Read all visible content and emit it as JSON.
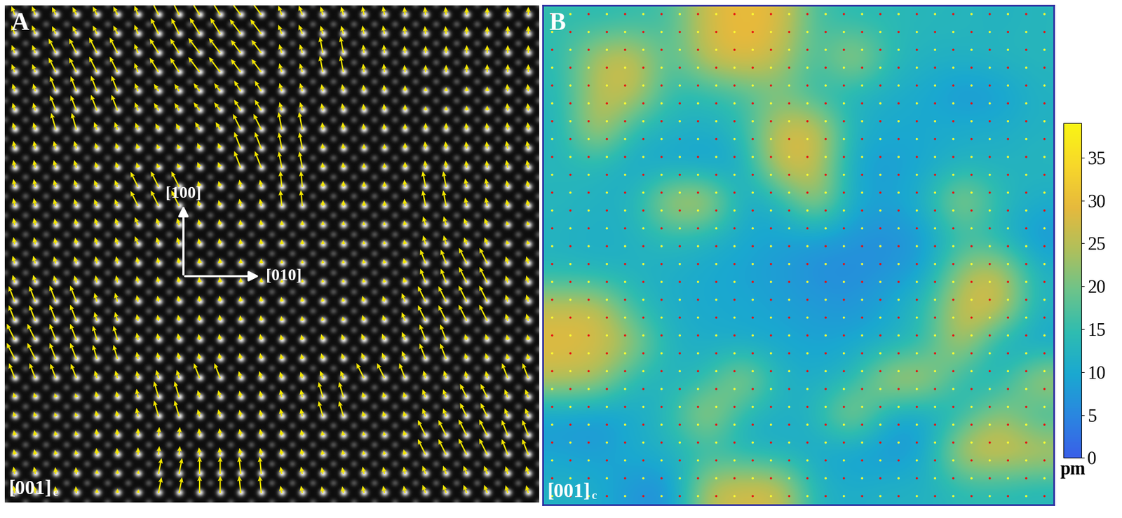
{
  "chart_data": {
    "type": "heatmap",
    "panel_labels": [
      "A",
      "B"
    ],
    "zone_axis": {
      "text": "[001]",
      "subscript": "c"
    },
    "direction_labels": [
      "[100]",
      "[010]"
    ],
    "color": "#f2e600",
    "tick_labels": false,
    "cells": [
      [
        15,
        14,
        15,
        16,
        28,
        30,
        29,
        16,
        14,
        14,
        13,
        13,
        12,
        13
      ],
      [
        14,
        26,
        28,
        16,
        27,
        30,
        26,
        15,
        27,
        14,
        12,
        12,
        13,
        13
      ],
      [
        13,
        26,
        27,
        14,
        14,
        16,
        20,
        14,
        12,
        11,
        10,
        7,
        8,
        12
      ],
      [
        12,
        28,
        13,
        12,
        11,
        14,
        28,
        29,
        12,
        10,
        10,
        11,
        11,
        12
      ],
      [
        13,
        13,
        10,
        9,
        8,
        10,
        29,
        27,
        9,
        8,
        10,
        12,
        12,
        13
      ],
      [
        13,
        12,
        12,
        27,
        28,
        10,
        12,
        26,
        10,
        9,
        12,
        26,
        14,
        11
      ],
      [
        12,
        11,
        12,
        14,
        12,
        10,
        9,
        8,
        7,
        6,
        8,
        15,
        12,
        7
      ],
      [
        13,
        12,
        12,
        11,
        10,
        9,
        8,
        6,
        6,
        7,
        9,
        24,
        28,
        12
      ],
      [
        27,
        28,
        15,
        11,
        10,
        10,
        9,
        8,
        7,
        10,
        15,
        28,
        29,
        12
      ],
      [
        29,
        28,
        24,
        12,
        11,
        10,
        10,
        9,
        10,
        11,
        14,
        27,
        10,
        9
      ],
      [
        26,
        25,
        13,
        12,
        14,
        26,
        12,
        11,
        13,
        27,
        26,
        13,
        12,
        26
      ],
      [
        8,
        7,
        10,
        14,
        27,
        12,
        11,
        13,
        26,
        9,
        9,
        14,
        24,
        14
      ],
      [
        9,
        8,
        11,
        12,
        14,
        12,
        11,
        10,
        8,
        7,
        9,
        28,
        29,
        27
      ],
      [
        12,
        11,
        7,
        6,
        26,
        28,
        28,
        12,
        11,
        12,
        12,
        14,
        14,
        13
      ]
    ],
    "arrow_angles": [
      [
        20,
        25,
        25,
        20,
        25,
        30,
        35,
        20,
        15,
        10,
        5,
        5,
        0,
        0
      ],
      [
        20,
        25,
        25,
        20,
        30,
        35,
        35,
        15,
        10,
        5,
        5,
        0,
        0,
        0
      ],
      [
        15,
        20,
        20,
        20,
        30,
        35,
        30,
        15,
        10,
        5,
        0,
        0,
        0,
        5
      ],
      [
        15,
        15,
        20,
        20,
        25,
        30,
        25,
        10,
        5,
        5,
        0,
        0,
        5,
        5
      ],
      [
        10,
        15,
        15,
        15,
        20,
        20,
        20,
        10,
        5,
        0,
        0,
        5,
        5,
        10
      ],
      [
        10,
        15,
        20,
        25,
        25,
        15,
        10,
        5,
        0,
        0,
        5,
        10,
        10,
        10
      ],
      [
        10,
        10,
        15,
        20,
        15,
        10,
        5,
        0,
        0,
        5,
        10,
        15,
        20,
        15
      ],
      [
        15,
        15,
        10,
        10,
        10,
        5,
        0,
        0,
        5,
        10,
        15,
        20,
        25,
        15
      ],
      [
        20,
        20,
        15,
        10,
        10,
        5,
        5,
        5,
        10,
        15,
        20,
        25,
        25,
        15
      ],
      [
        25,
        20,
        15,
        10,
        10,
        10,
        10,
        10,
        15,
        20,
        20,
        20,
        15,
        10
      ],
      [
        20,
        20,
        15,
        10,
        15,
        20,
        15,
        15,
        20,
        25,
        20,
        15,
        10,
        20
      ],
      [
        15,
        15,
        10,
        10,
        15,
        15,
        10,
        10,
        15,
        15,
        15,
        20,
        25,
        20
      ],
      [
        10,
        10,
        5,
        0,
        -5,
        5,
        10,
        10,
        10,
        10,
        15,
        25,
        25,
        20
      ],
      [
        10,
        5,
        0,
        -10,
        -10,
        0,
        5,
        10,
        10,
        10,
        10,
        20,
        20,
        15
      ]
    ],
    "colorbar": {
      "lim": [
        0,
        39
      ],
      "ticks": [
        0,
        5,
        10,
        15,
        20,
        25,
        30,
        35
      ],
      "label": "pm"
    }
  }
}
